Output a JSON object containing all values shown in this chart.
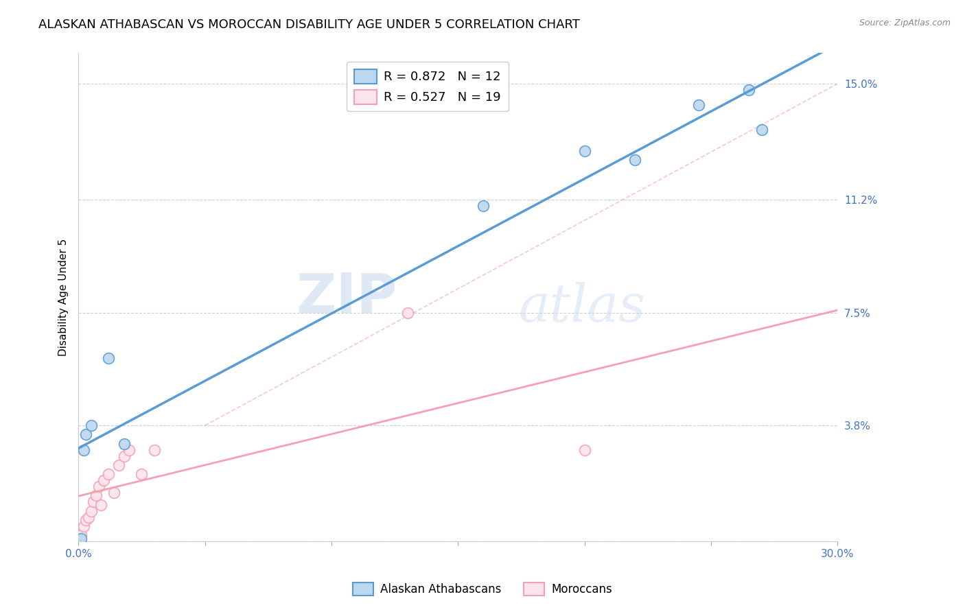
{
  "title": "ALASKAN ATHABASCAN VS MOROCCAN DISABILITY AGE UNDER 5 CORRELATION CHART",
  "source": "Source: ZipAtlas.com",
  "ylabel": "Disability Age Under 5",
  "x_min": 0.0,
  "x_max": 0.3,
  "y_min": 0.0,
  "y_max": 0.16,
  "x_ticks": [
    0.0,
    0.05,
    0.1,
    0.15,
    0.2,
    0.25,
    0.3
  ],
  "x_tick_labels": [
    "0.0%",
    "",
    "",
    "",
    "",
    "",
    "30.0%"
  ],
  "y_tick_positions": [
    0.0,
    0.038,
    0.075,
    0.112,
    0.15
  ],
  "y_tick_labels": [
    "",
    "3.8%",
    "7.5%",
    "11.2%",
    "15.0%"
  ],
  "blue_color": "#5b9bd5",
  "blue_fill": "#bdd7ee",
  "pink_color": "#f4a0b0",
  "pink_fill": "#fce4ec",
  "legend_r_blue": "R = 0.872",
  "legend_n_blue": "N = 12",
  "legend_r_pink": "R = 0.527",
  "legend_n_pink": "N = 19",
  "blue_x": [
    0.001,
    0.002,
    0.003,
    0.005,
    0.012,
    0.018,
    0.22,
    0.245,
    0.265,
    0.27,
    0.2,
    0.16
  ],
  "blue_y": [
    0.001,
    0.03,
    0.035,
    0.038,
    0.06,
    0.032,
    0.125,
    0.143,
    0.148,
    0.135,
    0.128,
    0.11
  ],
  "pink_x": [
    0.001,
    0.002,
    0.003,
    0.004,
    0.005,
    0.006,
    0.007,
    0.008,
    0.009,
    0.01,
    0.012,
    0.014,
    0.016,
    0.018,
    0.02,
    0.025,
    0.03,
    0.13,
    0.2
  ],
  "pink_y": [
    0.002,
    0.005,
    0.007,
    0.008,
    0.01,
    0.013,
    0.015,
    0.018,
    0.012,
    0.02,
    0.022,
    0.016,
    0.025,
    0.028,
    0.03,
    0.022,
    0.03,
    0.075,
    0.03
  ],
  "watermark_zip": "ZIP",
  "watermark_atlas": "atlas",
  "title_fontsize": 13,
  "axis_label_fontsize": 11,
  "tick_fontsize": 11,
  "marker_size": 130,
  "blue_line_intercept": 0.025,
  "blue_line_slope": 0.5,
  "pink_line_intercept": 0.008,
  "pink_line_slope": 0.46,
  "ref_line_intercept": 0.08,
  "ref_line_slope": 0.27
}
